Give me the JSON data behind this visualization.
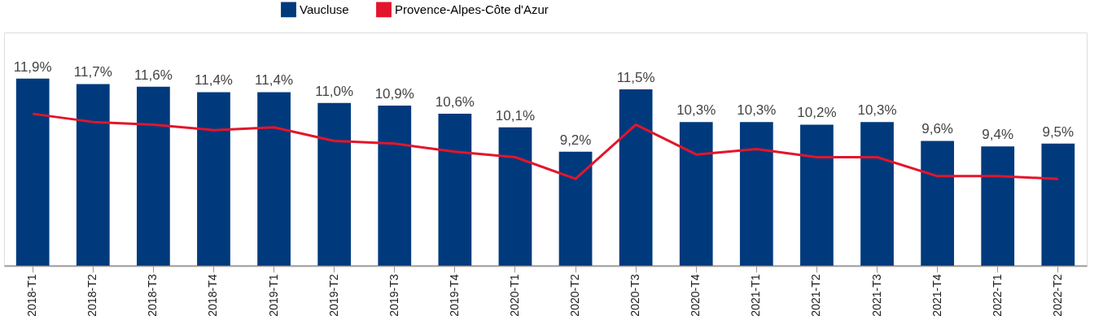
{
  "chart_data": {
    "type": "bar",
    "categories": [
      "2018-T1",
      "2018-T2",
      "2018-T3",
      "2018-T4",
      "2019-T1",
      "2019-T2",
      "2019-T3",
      "2019-T4",
      "2020-T1",
      "2020-T2",
      "2020-T3",
      "2020-T4",
      "2021-T1",
      "2021-T2",
      "2021-T3",
      "2021-T4",
      "2022-T1",
      "2022-T2"
    ],
    "series": [
      {
        "name": "Vaucluse",
        "color": "#003a7d",
        "values": [
          11.9,
          11.7,
          11.6,
          11.4,
          11.4,
          11.0,
          10.9,
          10.6,
          10.1,
          9.2,
          11.5,
          10.3,
          10.3,
          10.2,
          10.3,
          9.6,
          9.4,
          9.5
        ],
        "value_labels": [
          "11,9%",
          "11,7%",
          "11,6%",
          "11,4%",
          "11,4%",
          "11,0%",
          "10,9%",
          "10,6%",
          "10,1%",
          "9,2%",
          "11,5%",
          "10,3%",
          "10,3%",
          "10,2%",
          "10,3%",
          "9,6%",
          "9,4%",
          "9,5%"
        ]
      },
      {
        "name": "Provence-Alpes-Côte d'Azur",
        "type": "line",
        "color": "#e3152b",
        "values": [
          10.6,
          10.3,
          10.2,
          10.0,
          10.1,
          9.6,
          9.5,
          9.2,
          9.0,
          8.2,
          10.2,
          9.1,
          9.3,
          9.0,
          9.0,
          8.3,
          8.3,
          8.2
        ]
      }
    ],
    "ylim": [
      5,
      13.6
    ],
    "legend": "top",
    "tick_labels": "x"
  }
}
